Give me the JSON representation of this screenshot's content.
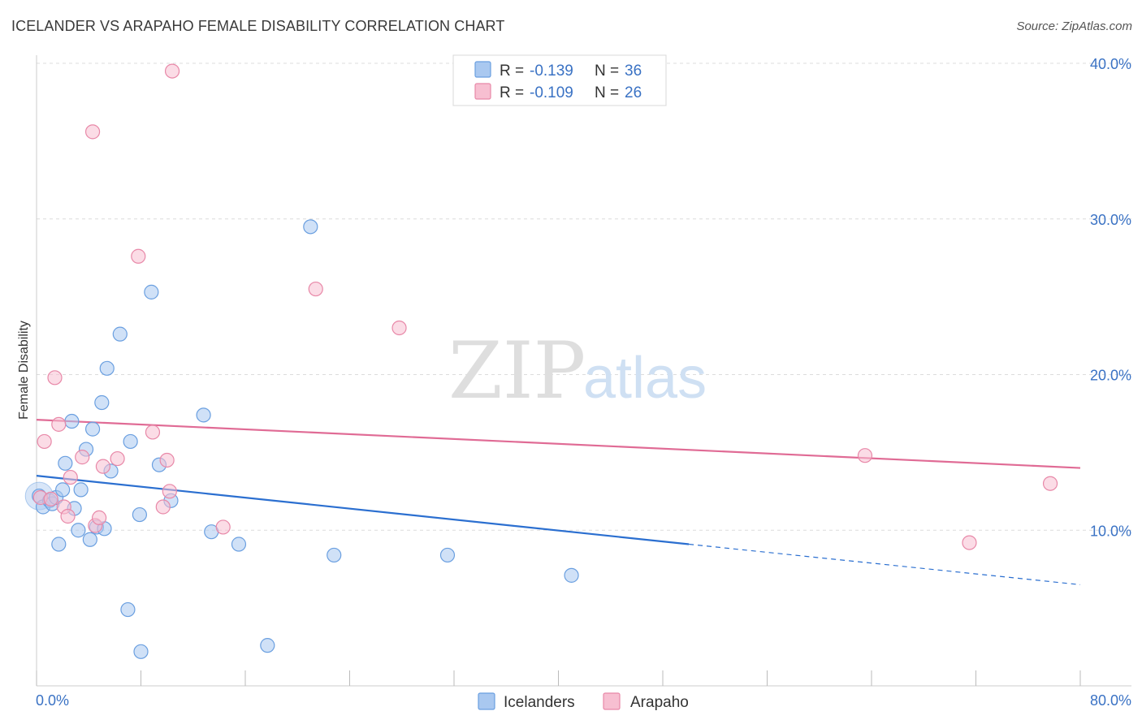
{
  "title": "ICELANDER VS ARAPAHO FEMALE DISABILITY CORRELATION CHART",
  "source": "Source: ZipAtlas.com",
  "watermark": {
    "part1": "ZIP",
    "part2": "atlas"
  },
  "colors": {
    "icelanders_fill": "#a9c8f0",
    "icelanders_stroke": "#6a9fe0",
    "icelanders_line": "#2b6fd0",
    "arapaho_fill": "#f7bfd1",
    "arapaho_stroke": "#e888a8",
    "arapaho_line": "#e06b95",
    "tick_text": "#3a72c4"
  },
  "legend": {
    "r_label": "R =",
    "n_label": "N =",
    "rows": [
      {
        "series": "Icelanders",
        "r": "-0.139",
        "n": "36"
      },
      {
        "series": "Arapaho",
        "r": "-0.109",
        "n": "26"
      }
    ]
  },
  "chart_data": {
    "type": "scatter",
    "title": "ICELANDER VS ARAPAHO FEMALE DISABILITY CORRELATION CHART",
    "xlabel": "",
    "ylabel": "Female Disability",
    "xlim": [
      0,
      80
    ],
    "ylim": [
      0,
      40
    ],
    "x_tick_labels": [
      "0.0%",
      "80.0%"
    ],
    "y_ticks": [
      10,
      20,
      30,
      40
    ],
    "y_tick_labels": [
      "10.0%",
      "20.0%",
      "30.0%",
      "40.0%"
    ],
    "grid": true,
    "legend_position": "bottom",
    "series": [
      {
        "name": "Icelanders",
        "points": [
          [
            0.2,
            12.2
          ],
          [
            0.5,
            11.5
          ],
          [
            1.0,
            11.9
          ],
          [
            1.2,
            11.7
          ],
          [
            1.5,
            12.1
          ],
          [
            1.7,
            9.1
          ],
          [
            2.0,
            12.6
          ],
          [
            2.2,
            14.3
          ],
          [
            2.7,
            17.0
          ],
          [
            2.9,
            11.4
          ],
          [
            3.2,
            10.0
          ],
          [
            3.4,
            12.6
          ],
          [
            3.8,
            15.2
          ],
          [
            4.1,
            9.4
          ],
          [
            4.3,
            16.5
          ],
          [
            4.6,
            10.2
          ],
          [
            5.0,
            18.2
          ],
          [
            5.2,
            10.1
          ],
          [
            5.4,
            20.4
          ],
          [
            5.7,
            13.8
          ],
          [
            6.4,
            22.6
          ],
          [
            7.0,
            4.9
          ],
          [
            7.2,
            15.7
          ],
          [
            7.9,
            11.0
          ],
          [
            8.0,
            2.2
          ],
          [
            8.8,
            25.3
          ],
          [
            9.4,
            14.2
          ],
          [
            10.3,
            11.9
          ],
          [
            12.8,
            17.4
          ],
          [
            13.4,
            9.9
          ],
          [
            15.5,
            9.1
          ],
          [
            17.7,
            2.6
          ],
          [
            21.0,
            29.5
          ],
          [
            22.8,
            8.4
          ],
          [
            31.5,
            8.4
          ],
          [
            41.0,
            7.1
          ]
        ],
        "trend": {
          "x0": 0,
          "y0": 13.5,
          "x1": 50,
          "y1": 9.1,
          "dashed_to_x": 80,
          "dashed_to_y": 6.5
        }
      },
      {
        "name": "Arapaho",
        "points": [
          [
            0.3,
            12.1
          ],
          [
            0.6,
            15.7
          ],
          [
            1.1,
            12.0
          ],
          [
            1.4,
            19.8
          ],
          [
            1.7,
            16.8
          ],
          [
            2.1,
            11.5
          ],
          [
            2.4,
            10.9
          ],
          [
            2.6,
            13.4
          ],
          [
            3.5,
            14.7
          ],
          [
            4.3,
            35.6
          ],
          [
            4.5,
            10.3
          ],
          [
            4.8,
            10.8
          ],
          [
            5.1,
            14.1
          ],
          [
            6.2,
            14.6
          ],
          [
            7.8,
            27.6
          ],
          [
            8.9,
            16.3
          ],
          [
            9.7,
            11.5
          ],
          [
            10.0,
            14.5
          ],
          [
            10.2,
            12.5
          ],
          [
            10.4,
            39.5
          ],
          [
            14.3,
            10.2
          ],
          [
            21.4,
            25.5
          ],
          [
            27.8,
            23.0
          ],
          [
            63.5,
            14.8
          ],
          [
            71.5,
            9.2
          ],
          [
            77.7,
            13.0
          ]
        ],
        "trend": {
          "x0": 0,
          "y0": 17.1,
          "x1": 80,
          "y1": 14.0
        }
      }
    ]
  }
}
